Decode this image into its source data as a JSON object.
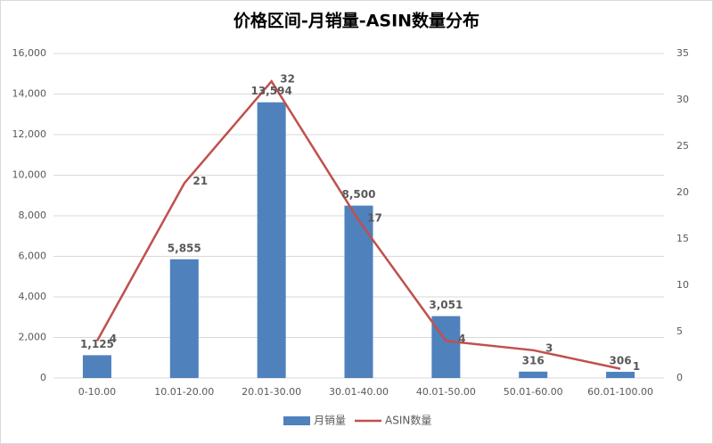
{
  "chart_data": {
    "type": "bar",
    "title": "价格区间-月销量-ASIN数量分布",
    "categories": [
      "0-10.00",
      "10.01-20.00",
      "20.01-30.00",
      "30.01-40.00",
      "40.01-50.00",
      "50.01-60.00",
      "60.01-100.00"
    ],
    "series": [
      {
        "name": "月销量",
        "type": "bar",
        "color": "#4f81bd",
        "label_color": "#e02020",
        "values": [
          1125,
          5855,
          13594,
          8500,
          3051,
          316,
          306
        ],
        "value_labels": [
          "1,125",
          "5,855",
          "13,594",
          "8,500",
          "3,051",
          "316",
          "306"
        ]
      },
      {
        "name": "ASIN数量",
        "type": "line",
        "axis": "y2",
        "color": "#c0504d",
        "label_color": "#7030a0",
        "values": [
          4,
          21,
          32,
          17,
          4,
          3,
          1
        ]
      }
    ],
    "ylim": [
      0,
      16000
    ],
    "yticks": [
      0,
      {
        "value": 2000,
        "label": "2,000"
      },
      {
        "value": 4000,
        "label": "4,000"
      },
      {
        "value": 6000,
        "label": "6,000"
      },
      {
        "value": 8000,
        "label": "8,000"
      },
      {
        "value": 10000,
        "label": "10,000"
      },
      {
        "value": 12000,
        "label": "12,000"
      },
      {
        "value": 14000,
        "label": "14,000"
      },
      {
        "value": 16000,
        "label": "16,000"
      }
    ],
    "y2lim": [
      0,
      35
    ],
    "y2ticks": [
      0,
      5,
      10,
      15,
      20,
      25,
      30,
      35
    ],
    "grid": true,
    "legend": "bottom"
  }
}
